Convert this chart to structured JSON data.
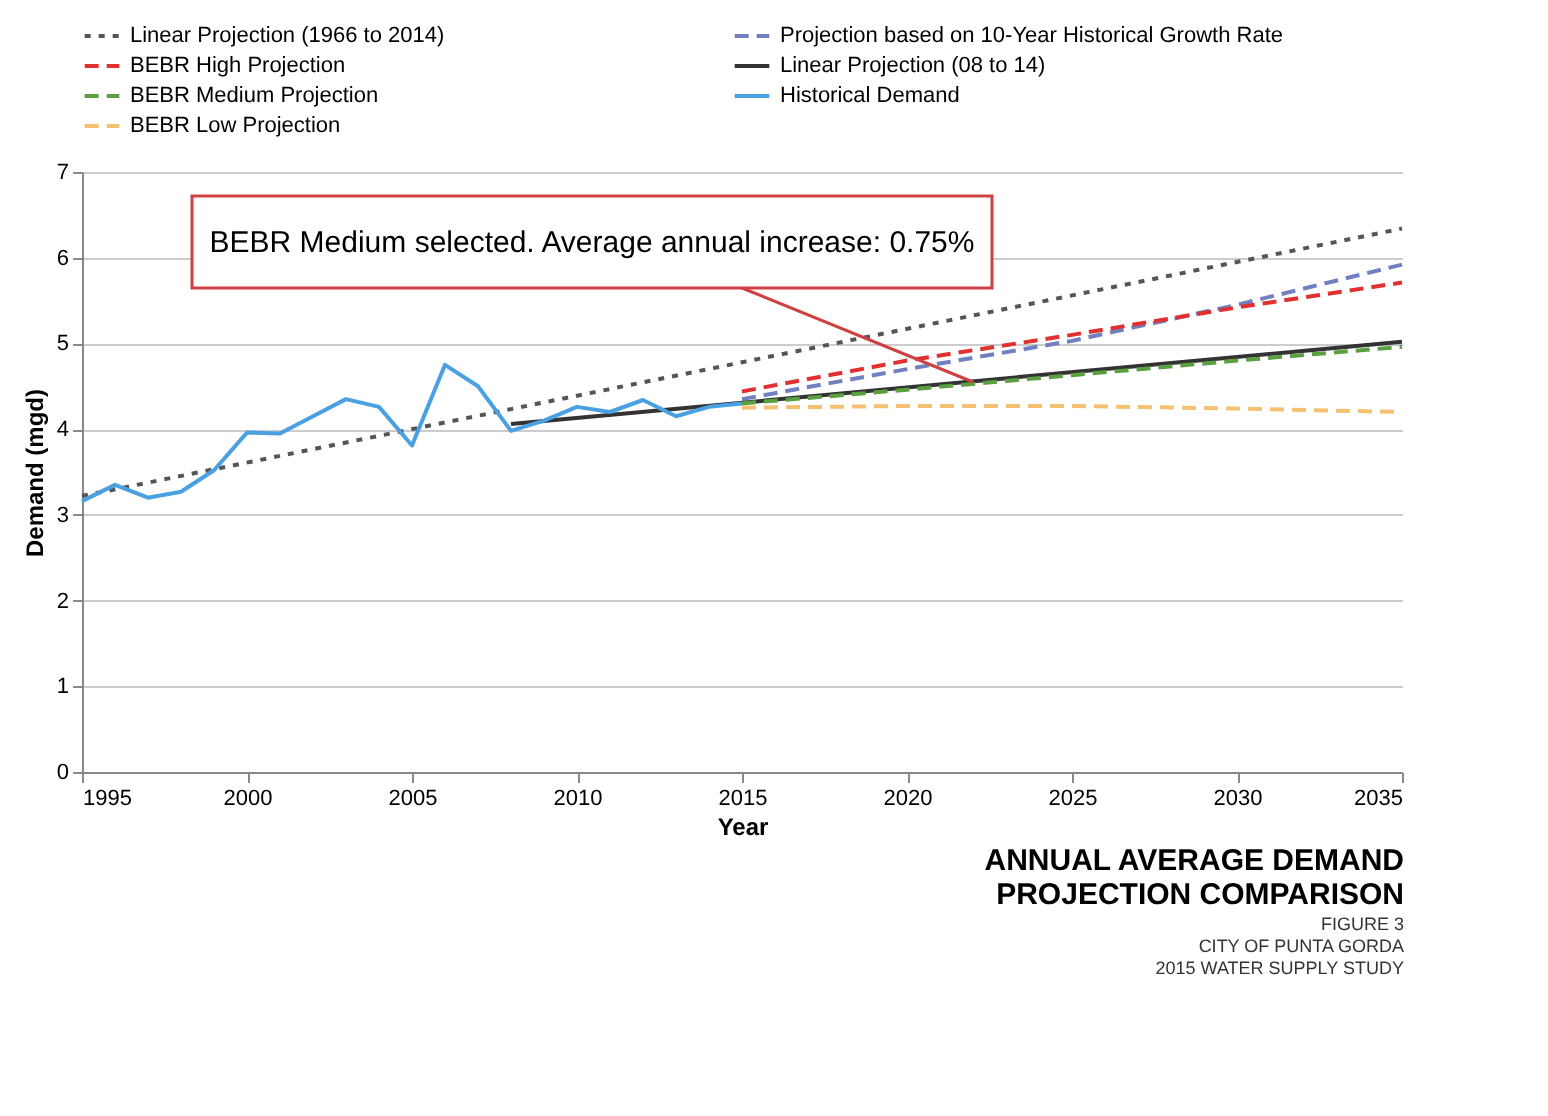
{
  "chart_data": {
    "type": "line",
    "title": "ANNUAL AVERAGE DEMAND PROJECTION COMPARISON",
    "subtitle": "FIGURE 3",
    "xlabel": "Year",
    "ylabel": "Demand (mgd)",
    "xlim": [
      1995,
      2035
    ],
    "xticks": [
      1995,
      2000,
      2005,
      2010,
      2015,
      2020,
      2025,
      2030,
      2035
    ],
    "ylim": [
      0,
      7
    ],
    "yticks": [
      0,
      1,
      2,
      3,
      4,
      5,
      6,
      7
    ],
    "grid": "y",
    "legend": "top",
    "marker": "none",
    "annotations": [
      {
        "text": "BEBR Medium selected. Average annual increase: 0.75%",
        "x": 2022,
        "y": 4.55
      },
      "CITY OF PUNTA GORDA",
      "2015 WATER SUPPLY STUDY"
    ],
    "series": [
      {
        "name": "Linear Projection (1966 to 2014)",
        "color": "#555555",
        "line_style": "dotted",
        "x": [
          1995,
          2035
        ],
        "values": [
          3.22,
          6.34
        ]
      },
      {
        "name": "Projection based on 10-Year Historical Growth Rate",
        "color": "#7080c0",
        "line_style": "dashed",
        "x": [
          2015,
          2020,
          2025,
          2030,
          2035
        ],
        "values": [
          4.35,
          4.7,
          5.03,
          5.45,
          5.92
        ]
      },
      {
        "name": "BEBR High Projection",
        "color": "#e03030",
        "line_style": "dashed",
        "x": [
          2015,
          2020,
          2025,
          2030,
          2035
        ],
        "values": [
          4.44,
          4.8,
          5.1,
          5.42,
          5.71
        ]
      },
      {
        "name": "Linear Projection (08 to 14)",
        "color": "#333333",
        "line_style": "solid",
        "x": [
          2008,
          2035
        ],
        "values": [
          4.06,
          5.02
        ]
      },
      {
        "name": "BEBR Medium Projection",
        "color": "#5aa040",
        "line_style": "dashed",
        "x": [
          2015,
          2020,
          2025,
          2030,
          2035
        ],
        "values": [
          4.3,
          4.46,
          4.63,
          4.8,
          4.96
        ]
      },
      {
        "name": "Historical Demand",
        "color": "#4aa0e0",
        "line_style": "solid",
        "x": [
          1995,
          1996,
          1997,
          1998,
          1999,
          2000,
          2001,
          2002,
          2003,
          2004,
          2005,
          2006,
          2007,
          2008,
          2009,
          2010,
          2011,
          2012,
          2013,
          2014,
          2015
        ],
        "values": [
          3.16,
          3.35,
          3.2,
          3.27,
          3.52,
          3.96,
          3.95,
          4.15,
          4.35,
          4.26,
          3.81,
          4.75,
          4.5,
          3.98,
          4.1,
          4.26,
          4.2,
          4.34,
          4.15,
          4.26,
          4.3
        ]
      },
      {
        "name": "BEBR Low Projection",
        "color": "#f5c070",
        "line_style": "dashed",
        "x": [
          2015,
          2020,
          2025,
          2030,
          2035
        ],
        "values": [
          4.25,
          4.27,
          4.27,
          4.24,
          4.2
        ]
      }
    ]
  }
}
